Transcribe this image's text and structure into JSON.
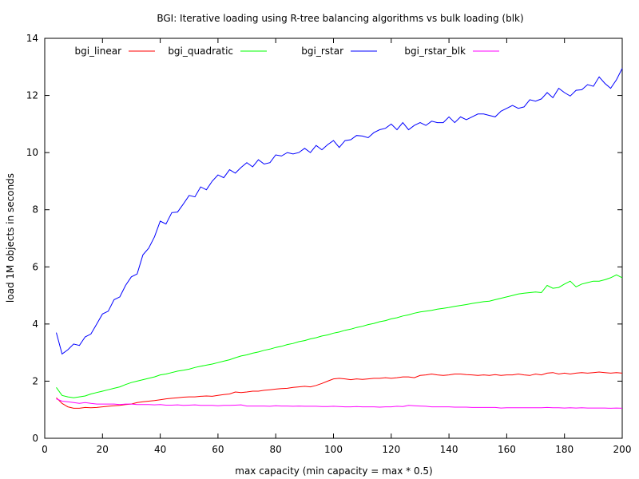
{
  "chart_data": {
    "type": "line",
    "title": "BGI: Iterative loading using R-tree balancing algorithms vs bulk loading (blk)",
    "xlabel": "max capacity (min capacity = max * 0.5)",
    "ylabel": "load 1M objects in seconds",
    "xlim": [
      0,
      200
    ],
    "ylim": [
      0,
      14
    ],
    "xticks": [
      0,
      20,
      40,
      60,
      80,
      100,
      120,
      140,
      160,
      180,
      200
    ],
    "yticks": [
      0,
      2,
      4,
      6,
      8,
      10,
      12,
      14
    ],
    "grid": false,
    "legend_position": "top",
    "x": [
      4,
      6,
      8,
      10,
      12,
      14,
      16,
      18,
      20,
      22,
      24,
      26,
      28,
      30,
      32,
      34,
      36,
      38,
      40,
      42,
      44,
      46,
      48,
      50,
      52,
      54,
      56,
      58,
      60,
      62,
      64,
      66,
      68,
      70,
      72,
      74,
      76,
      78,
      80,
      82,
      84,
      86,
      88,
      90,
      92,
      94,
      96,
      98,
      100,
      102,
      104,
      106,
      108,
      110,
      112,
      114,
      116,
      118,
      120,
      122,
      124,
      126,
      128,
      130,
      132,
      134,
      136,
      138,
      140,
      142,
      144,
      146,
      148,
      150,
      152,
      154,
      156,
      158,
      160,
      162,
      164,
      166,
      168,
      170,
      172,
      174,
      176,
      178,
      180,
      182,
      184,
      186,
      188,
      190,
      192,
      194,
      196,
      198,
      200
    ],
    "series": [
      {
        "name": "bgi_linear",
        "color": "#ff0000",
        "values": [
          1.42,
          1.22,
          1.1,
          1.05,
          1.05,
          1.08,
          1.07,
          1.08,
          1.1,
          1.12,
          1.14,
          1.15,
          1.18,
          1.2,
          1.25,
          1.28,
          1.3,
          1.32,
          1.35,
          1.38,
          1.4,
          1.42,
          1.44,
          1.45,
          1.45,
          1.47,
          1.48,
          1.47,
          1.5,
          1.53,
          1.55,
          1.62,
          1.6,
          1.62,
          1.65,
          1.65,
          1.68,
          1.7,
          1.72,
          1.74,
          1.75,
          1.78,
          1.8,
          1.82,
          1.8,
          1.85,
          1.92,
          2.0,
          2.08,
          2.1,
          2.08,
          2.05,
          2.08,
          2.06,
          2.08,
          2.1,
          2.1,
          2.12,
          2.1,
          2.12,
          2.15,
          2.15,
          2.12,
          2.2,
          2.22,
          2.25,
          2.22,
          2.2,
          2.22,
          2.25,
          2.25,
          2.23,
          2.22,
          2.2,
          2.22,
          2.2,
          2.23,
          2.2,
          2.22,
          2.22,
          2.25,
          2.22,
          2.2,
          2.25,
          2.22,
          2.28,
          2.3,
          2.25,
          2.28,
          2.25,
          2.28,
          2.3,
          2.28,
          2.3,
          2.32,
          2.3,
          2.28,
          2.3,
          2.28
        ]
      },
      {
        "name": "bgi_quadratic",
        "color": "#00ff00",
        "values": [
          1.78,
          1.5,
          1.45,
          1.42,
          1.45,
          1.48,
          1.55,
          1.6,
          1.65,
          1.7,
          1.75,
          1.8,
          1.88,
          1.95,
          2.0,
          2.05,
          2.1,
          2.15,
          2.22,
          2.25,
          2.3,
          2.35,
          2.38,
          2.42,
          2.48,
          2.52,
          2.56,
          2.6,
          2.65,
          2.7,
          2.75,
          2.82,
          2.88,
          2.92,
          2.98,
          3.02,
          3.08,
          3.12,
          3.18,
          3.22,
          3.28,
          3.32,
          3.38,
          3.42,
          3.48,
          3.52,
          3.58,
          3.62,
          3.68,
          3.72,
          3.78,
          3.82,
          3.88,
          3.92,
          3.98,
          4.02,
          4.08,
          4.12,
          4.18,
          4.22,
          4.28,
          4.32,
          4.38,
          4.42,
          4.45,
          4.48,
          4.52,
          4.55,
          4.58,
          4.62,
          4.65,
          4.68,
          4.72,
          4.75,
          4.78,
          4.8,
          4.85,
          4.9,
          4.95,
          5.0,
          5.05,
          5.08,
          5.1,
          5.12,
          5.1,
          5.35,
          5.25,
          5.28,
          5.4,
          5.5,
          5.3,
          5.4,
          5.45,
          5.5,
          5.5,
          5.55,
          5.62,
          5.72,
          5.62
        ]
      },
      {
        "name": "bgi_rstar",
        "color": "#0000ff",
        "values": [
          3.7,
          2.95,
          3.1,
          3.3,
          3.25,
          3.55,
          3.65,
          4.0,
          4.35,
          4.45,
          4.85,
          4.95,
          5.35,
          5.65,
          5.75,
          6.42,
          6.65,
          7.05,
          7.6,
          7.5,
          7.9,
          7.92,
          8.2,
          8.5,
          8.45,
          8.8,
          8.7,
          9.0,
          9.22,
          9.12,
          9.4,
          9.28,
          9.48,
          9.65,
          9.5,
          9.75,
          9.6,
          9.65,
          9.92,
          9.88,
          10.0,
          9.95,
          10.0,
          10.15,
          10.0,
          10.25,
          10.1,
          10.28,
          10.42,
          10.18,
          10.42,
          10.45,
          10.6,
          10.58,
          10.52,
          10.7,
          10.8,
          10.85,
          11.0,
          10.8,
          11.05,
          10.8,
          10.95,
          11.05,
          10.95,
          11.1,
          11.05,
          11.05,
          11.25,
          11.05,
          11.25,
          11.15,
          11.25,
          11.35,
          11.35,
          11.3,
          11.25,
          11.45,
          11.55,
          11.65,
          11.55,
          11.6,
          11.85,
          11.8,
          11.88,
          12.1,
          11.92,
          12.25,
          12.1,
          11.98,
          12.18,
          12.2,
          12.38,
          12.32,
          12.65,
          12.42,
          12.25,
          12.55,
          12.95
        ]
      },
      {
        "name": "bgi_rstar_blk",
        "color": "#ff00ff",
        "values": [
          1.38,
          1.3,
          1.28,
          1.25,
          1.22,
          1.25,
          1.22,
          1.2,
          1.2,
          1.2,
          1.2,
          1.18,
          1.2,
          1.2,
          1.18,
          1.18,
          1.18,
          1.17,
          1.18,
          1.16,
          1.16,
          1.17,
          1.15,
          1.16,
          1.17,
          1.15,
          1.15,
          1.15,
          1.14,
          1.15,
          1.15,
          1.16,
          1.17,
          1.13,
          1.13,
          1.13,
          1.13,
          1.12,
          1.14,
          1.13,
          1.13,
          1.12,
          1.13,
          1.12,
          1.12,
          1.12,
          1.11,
          1.11,
          1.12,
          1.11,
          1.1,
          1.1,
          1.11,
          1.1,
          1.1,
          1.1,
          1.09,
          1.1,
          1.1,
          1.12,
          1.11,
          1.15,
          1.14,
          1.13,
          1.12,
          1.1,
          1.1,
          1.1,
          1.1,
          1.09,
          1.09,
          1.09,
          1.08,
          1.08,
          1.08,
          1.08,
          1.08,
          1.06,
          1.07,
          1.07,
          1.07,
          1.07,
          1.07,
          1.07,
          1.07,
          1.08,
          1.07,
          1.07,
          1.06,
          1.07,
          1.06,
          1.07,
          1.06,
          1.06,
          1.06,
          1.06,
          1.05,
          1.06,
          1.05
        ]
      }
    ]
  }
}
